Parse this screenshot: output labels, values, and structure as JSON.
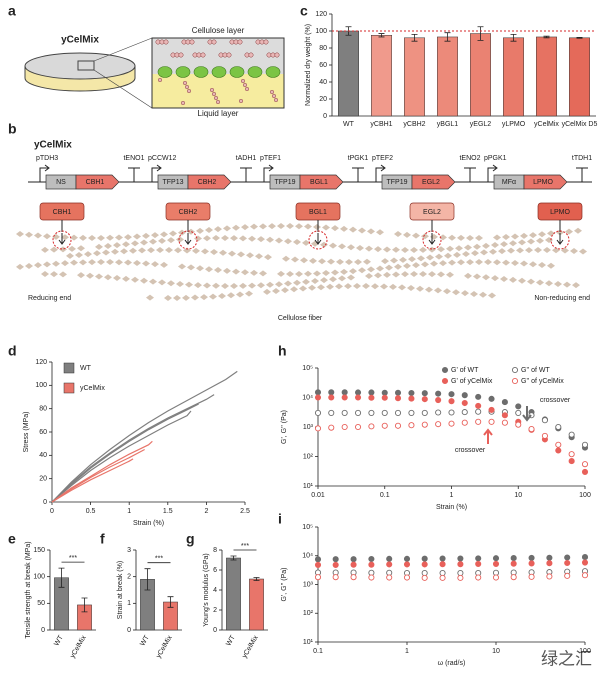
{
  "panels": {
    "a": {
      "label": "a",
      "title": "yCelMix",
      "top_layer": "Cellulose layer",
      "bottom_layer": "Liquid layer"
    },
    "b": {
      "label": "b",
      "title": "yCelMix",
      "cassettes": [
        {
          "promoter": "pTDH3",
          "signal": "NS",
          "gene": "CBH1",
          "terminator": "tENO1"
        },
        {
          "promoter": "pCCW12",
          "signal": "TFP13",
          "gene": "CBH2",
          "terminator": "tADH1"
        },
        {
          "promoter": "pTEF1",
          "signal": "TFP19",
          "gene": "BGL1",
          "terminator": "tPGK1"
        },
        {
          "promoter": "pTEF2",
          "signal": "TFP19",
          "gene": "EGL2",
          "terminator": "tENO2"
        },
        {
          "promoter": "pPGK1",
          "signal": "MFα",
          "gene": "LPMO",
          "terminator": "tTDH1"
        }
      ],
      "enzymes": [
        "CBH1",
        "CBH2",
        "BGL1",
        "EGL2",
        "LPMO"
      ],
      "reducing_end": "Reducing end",
      "non_reducing_end": "Non-reducing end",
      "fiber": "Cellulose fiber"
    }
  },
  "watermark": "绿之汇",
  "chart_data": [
    {
      "type": "bar",
      "label": "c",
      "ylabel": "Normalized dry weight (%)",
      "categories": [
        "WT",
        "yCBH1",
        "yCBH2",
        "yBGL1",
        "yEGL2",
        "yLPMO",
        "yCelMix",
        "yCelMix D5"
      ],
      "values": [
        100,
        95,
        92,
        93,
        97,
        92,
        93,
        92
      ],
      "errors": [
        5,
        2,
        4,
        5,
        8,
        4,
        1,
        0.5
      ],
      "colors": [
        "#7f7f7f",
        "#f09a8c",
        "#ee9282",
        "#ec8a7a",
        "#ea8272",
        "#e87a6a",
        "#e67262",
        "#e46a5a"
      ],
      "ylim": [
        0,
        120
      ],
      "yticks": [
        0,
        20,
        40,
        60,
        80,
        100,
        120
      ],
      "reference_line": 100,
      "reference_color": "#d62728"
    },
    {
      "type": "line",
      "label": "d",
      "ylabel": "Stress (MPa)",
      "xlabel": "Strain (%)",
      "xlim": [
        0,
        2.5
      ],
      "xticks": [
        0,
        0.5,
        1,
        1.5,
        2,
        2.5
      ],
      "ylim": [
        0,
        120
      ],
      "yticks": [
        0,
        20,
        40,
        60,
        80,
        100,
        120
      ],
      "legend": "upper left",
      "series": [
        {
          "name": "WT",
          "color": "#7f7f7f",
          "curves": [
            {
              "x": [
                0,
                0.25,
                0.5,
                0.75,
                1,
                1.25,
                1.5,
                1.75,
                2,
                2.25,
                2.4
              ],
              "y": [
                0,
                17,
                32,
                45,
                57,
                68,
                78,
                87,
                96,
                105,
                112
              ]
            },
            {
              "x": [
                0,
                0.25,
                0.5,
                0.75,
                1,
                1.25,
                1.5,
                1.75,
                2,
                2.1
              ],
              "y": [
                0,
                16,
                30,
                42,
                53,
                63,
                72,
                80,
                88,
                92
              ]
            },
            {
              "x": [
                0,
                0.25,
                0.5,
                0.75,
                1,
                1.25,
                1.5,
                1.75,
                1.9
              ],
              "y": [
                0,
                15,
                29,
                41,
                52,
                62,
                71,
                79,
                84
              ]
            },
            {
              "x": [
                0,
                0.25,
                0.5,
                0.75,
                1,
                1.25,
                1.5,
                1.75,
                1.8
              ],
              "y": [
                0,
                14,
                27,
                38,
                48,
                57,
                66,
                74,
                78
              ]
            }
          ]
        },
        {
          "name": "yCelMix",
          "color": "#e8756a",
          "curves": [
            {
              "x": [
                0,
                0.25,
                0.5,
                0.75,
                1,
                1.25,
                1.3
              ],
              "y": [
                0,
                12,
                22,
                32,
                41,
                49,
                52
              ]
            },
            {
              "x": [
                0,
                0.25,
                0.5,
                0.75,
                1,
                1.2
              ],
              "y": [
                0,
                11,
                21,
                30,
                38,
                45
              ]
            },
            {
              "x": [
                0,
                0.25,
                0.5,
                0.75,
                1,
                1.05
              ],
              "y": [
                0,
                10,
                19,
                27,
                35,
                37
              ]
            }
          ]
        }
      ]
    },
    {
      "type": "bar",
      "label": "e",
      "ylabel": "Tensile strength at break (MPa)",
      "categories": [
        "WT",
        "yCelMix"
      ],
      "values": [
        98,
        47
      ],
      "errors": [
        18,
        13
      ],
      "colors": [
        "#7f7f7f",
        "#e8756a"
      ],
      "ylim": [
        0,
        150
      ],
      "yticks": [
        0,
        50,
        100,
        150
      ],
      "significance": "***"
    },
    {
      "type": "bar",
      "label": "f",
      "ylabel": "Strain at break (%)",
      "categories": [
        "WT",
        "yCelMix"
      ],
      "values": [
        1.9,
        1.05
      ],
      "errors": [
        0.4,
        0.2
      ],
      "colors": [
        "#7f7f7f",
        "#e8756a"
      ],
      "ylim": [
        0,
        3
      ],
      "yticks": [
        0,
        1,
        2,
        3
      ],
      "significance": "***"
    },
    {
      "type": "bar",
      "label": "g",
      "ylabel": "Young's modulus (GPa)",
      "categories": [
        "WT",
        "yCelMix"
      ],
      "values": [
        7.2,
        5.1
      ],
      "errors": [
        0.2,
        0.15
      ],
      "colors": [
        "#7f7f7f",
        "#e8756a"
      ],
      "ylim": [
        0,
        8
      ],
      "yticks": [
        0,
        2,
        4,
        6,
        8
      ],
      "significance": "***"
    },
    {
      "type": "scatter",
      "label": "h",
      "ylabel": "G', G'' (Pa)",
      "xlabel": "Strain (%)",
      "xlog": true,
      "ylog": true,
      "xlim": [
        0.01,
        100
      ],
      "xticks": [
        0.01,
        0.1,
        1,
        10,
        100
      ],
      "ylim": [
        10,
        100000
      ],
      "yticks": [
        {
          "value": 10,
          "label": "10¹"
        },
        {
          "value": 100,
          "label": "10²"
        },
        {
          "value": 1000,
          "label": "10³"
        },
        {
          "value": 10000,
          "label": "10⁴"
        },
        {
          "value": 100000,
          "label": "10⁵"
        }
      ],
      "legend": "upper right",
      "annotations": [
        "crossover",
        "crossover"
      ],
      "x": [
        0.01,
        0.0158,
        0.0251,
        0.0398,
        0.0631,
        0.1,
        0.158,
        0.251,
        0.398,
        0.631,
        1,
        1.58,
        2.51,
        3.98,
        6.31,
        10,
        15.8,
        25.1,
        39.8,
        63.1,
        100
      ],
      "series": [
        {
          "name": "G' of WT",
          "color": "#6d6d6d",
          "filled": true,
          "values": [
            15000,
            15000,
            15000,
            14800,
            14800,
            14500,
            14500,
            14200,
            14000,
            13500,
            13000,
            12000,
            10500,
            9000,
            7000,
            5000,
            3200,
            1800,
            900,
            450,
            200
          ]
        },
        {
          "name": "G'' of WT",
          "color": "#6d6d6d",
          "filled": false,
          "values": [
            3000,
            3000,
            3000,
            3000,
            3000,
            3000,
            3000,
            3000,
            3000,
            3100,
            3100,
            3200,
            3300,
            3300,
            3200,
            3000,
            2500,
            1700,
            1000,
            550,
            250
          ]
        },
        {
          "name": "G' of yCelMix",
          "color": "#e8605a",
          "filled": true,
          "values": [
            10000,
            10000,
            10000,
            10000,
            9800,
            9800,
            9500,
            9200,
            8800,
            8200,
            7500,
            6500,
            5200,
            3800,
            2500,
            1500,
            800,
            380,
            160,
            70,
            30
          ]
        },
        {
          "name": "G'' of yCelMix",
          "color": "#e8605a",
          "filled": false,
          "values": [
            900,
            950,
            1000,
            1000,
            1050,
            1100,
            1100,
            1150,
            1200,
            1250,
            1300,
            1400,
            1500,
            1500,
            1400,
            1200,
            850,
            500,
            250,
            120,
            55
          ]
        }
      ]
    },
    {
      "type": "scatter",
      "label": "i",
      "ylabel": "G', G'' (Pa)",
      "xlabel": "ω (rad/s)",
      "xlog": true,
      "ylog": true,
      "xlim": [
        0.1,
        100
      ],
      "xticks": [
        0.1,
        1,
        10,
        100
      ],
      "ylim": [
        10,
        100000
      ],
      "yticks": [
        {
          "value": 10,
          "label": "10¹"
        },
        {
          "value": 100,
          "label": "10²"
        },
        {
          "value": 1000,
          "label": "10³"
        },
        {
          "value": 10000,
          "label": "10⁴"
        },
        {
          "value": 100000,
          "label": "10⁵"
        }
      ],
      "x": [
        0.1,
        0.158,
        0.251,
        0.398,
        0.631,
        1,
        1.58,
        2.51,
        3.98,
        6.31,
        10,
        15.8,
        25.1,
        39.8,
        63.1,
        100
      ],
      "series": [
        {
          "color": "#6d6d6d",
          "filled": true,
          "values": [
            7500,
            7600,
            7600,
            7700,
            7800,
            7800,
            7900,
            8000,
            8000,
            8100,
            8200,
            8300,
            8400,
            8500,
            8700,
            9000
          ]
        },
        {
          "color": "#6d6d6d",
          "filled": false,
          "values": [
            2600,
            2600,
            2600,
            2550,
            2550,
            2500,
            2500,
            2500,
            2500,
            2500,
            2550,
            2600,
            2650,
            2700,
            2800,
            2900
          ]
        },
        {
          "color": "#e8605a",
          "filled": true,
          "values": [
            4800,
            4800,
            4900,
            4900,
            5000,
            5000,
            5000,
            5100,
            5100,
            5200,
            5200,
            5300,
            5400,
            5500,
            5600,
            5800
          ]
        },
        {
          "color": "#e8605a",
          "filled": false,
          "values": [
            1800,
            1800,
            1800,
            1750,
            1750,
            1750,
            1700,
            1700,
            1700,
            1750,
            1750,
            1800,
            1850,
            1900,
            2000,
            2100
          ]
        }
      ]
    }
  ]
}
